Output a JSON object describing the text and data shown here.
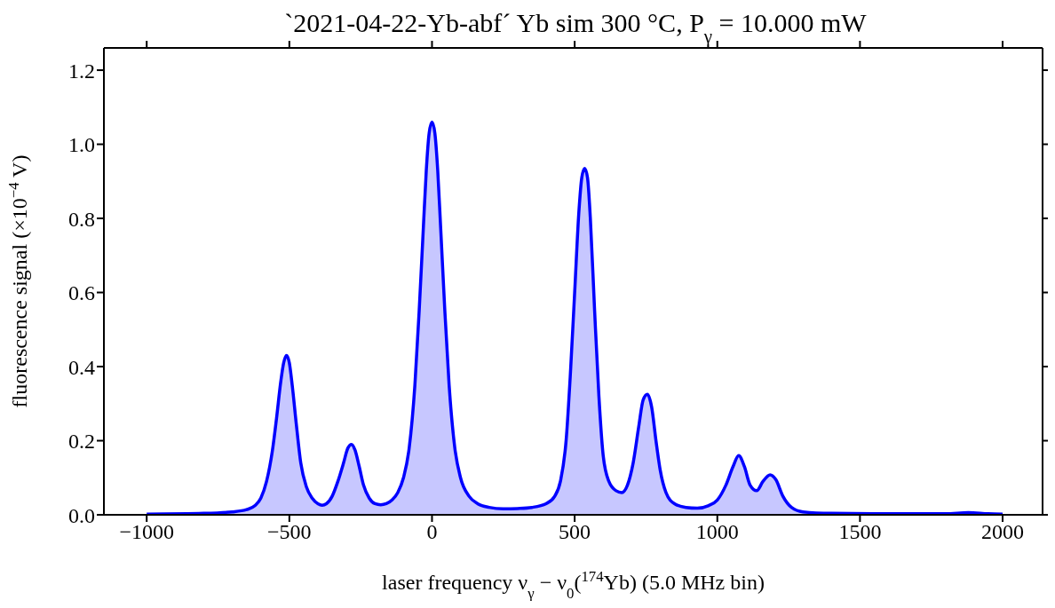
{
  "chart_data": {
    "type": "area",
    "title": "`2021-04-22-Yb-abf´   Yb sim   300 °C, P$_{γ}$ = 10.000 mW",
    "xlabel": "laser frequency ν$_{γ}$ − ν$_{0}$($^{174}$Yb) (5.0 MHz bin)",
    "ylabel": "fluorescence signal (×10$^{−4}$ V)",
    "x": [
      -1000,
      -800,
      -700,
      -650,
      -620,
      -600,
      -580,
      -560,
      -545,
      -530,
      -520,
      -510,
      -500,
      -490,
      -475,
      -460,
      -440,
      -420,
      -400,
      -385,
      -370,
      -350,
      -330,
      -310,
      -295,
      -282,
      -270,
      -255,
      -240,
      -220,
      -200,
      -180,
      -160,
      -140,
      -120,
      -100,
      -80,
      -60,
      -45,
      -30,
      -20,
      -10,
      0,
      10,
      20,
      30,
      45,
      60,
      80,
      100,
      130,
      160,
      200,
      250,
      300,
      350,
      400,
      430,
      450,
      470,
      485,
      500,
      515,
      525,
      535,
      545,
      555,
      570,
      585,
      600,
      620,
      645,
      665,
      685,
      705,
      725,
      740,
      755,
      770,
      785,
      800,
      820,
      850,
      890,
      930,
      970,
      1000,
      1030,
      1055,
      1075,
      1095,
      1115,
      1138,
      1160,
      1185,
      1205,
      1230,
      1260,
      1300,
      1400,
      1600,
      1800,
      1880,
      1950,
      2000
    ],
    "series": [
      {
        "color": "#0000ff",
        "values": [
          0.002,
          0.004,
          0.008,
          0.014,
          0.025,
          0.045,
          0.09,
          0.17,
          0.26,
          0.36,
          0.41,
          0.43,
          0.41,
          0.35,
          0.24,
          0.14,
          0.075,
          0.045,
          0.03,
          0.026,
          0.03,
          0.05,
          0.09,
          0.14,
          0.18,
          0.19,
          0.175,
          0.13,
          0.08,
          0.045,
          0.03,
          0.027,
          0.03,
          0.04,
          0.06,
          0.1,
          0.18,
          0.35,
          0.55,
          0.78,
          0.93,
          1.03,
          1.06,
          1.03,
          0.93,
          0.78,
          0.55,
          0.35,
          0.18,
          0.1,
          0.05,
          0.03,
          0.02,
          0.016,
          0.017,
          0.02,
          0.03,
          0.05,
          0.09,
          0.2,
          0.38,
          0.6,
          0.82,
          0.91,
          0.935,
          0.91,
          0.8,
          0.55,
          0.32,
          0.16,
          0.09,
          0.065,
          0.06,
          0.08,
          0.14,
          0.24,
          0.31,
          0.325,
          0.29,
          0.2,
          0.12,
          0.06,
          0.03,
          0.02,
          0.018,
          0.025,
          0.04,
          0.08,
          0.13,
          0.16,
          0.13,
          0.08,
          0.065,
          0.09,
          0.108,
          0.095,
          0.05,
          0.02,
          0.008,
          0.004,
          0.003,
          0.003,
          0.006,
          0.003,
          0.002
        ]
      }
    ],
    "xlim": [
      -1150,
      2140
    ],
    "ylim": [
      0,
      1.26
    ],
    "xticks": [
      {
        "value": -1000,
        "label": "−1000"
      },
      {
        "value": -500,
        "label": "−500"
      },
      0,
      500,
      1000,
      1500,
      2000
    ],
    "yticks": [
      {
        "value": 0,
        "label": "0.0"
      },
      0.2,
      0.4,
      0.6,
      0.8,
      {
        "value": 1,
        "label": "1.0"
      },
      1.2
    ],
    "grid": false,
    "legend": false
  }
}
